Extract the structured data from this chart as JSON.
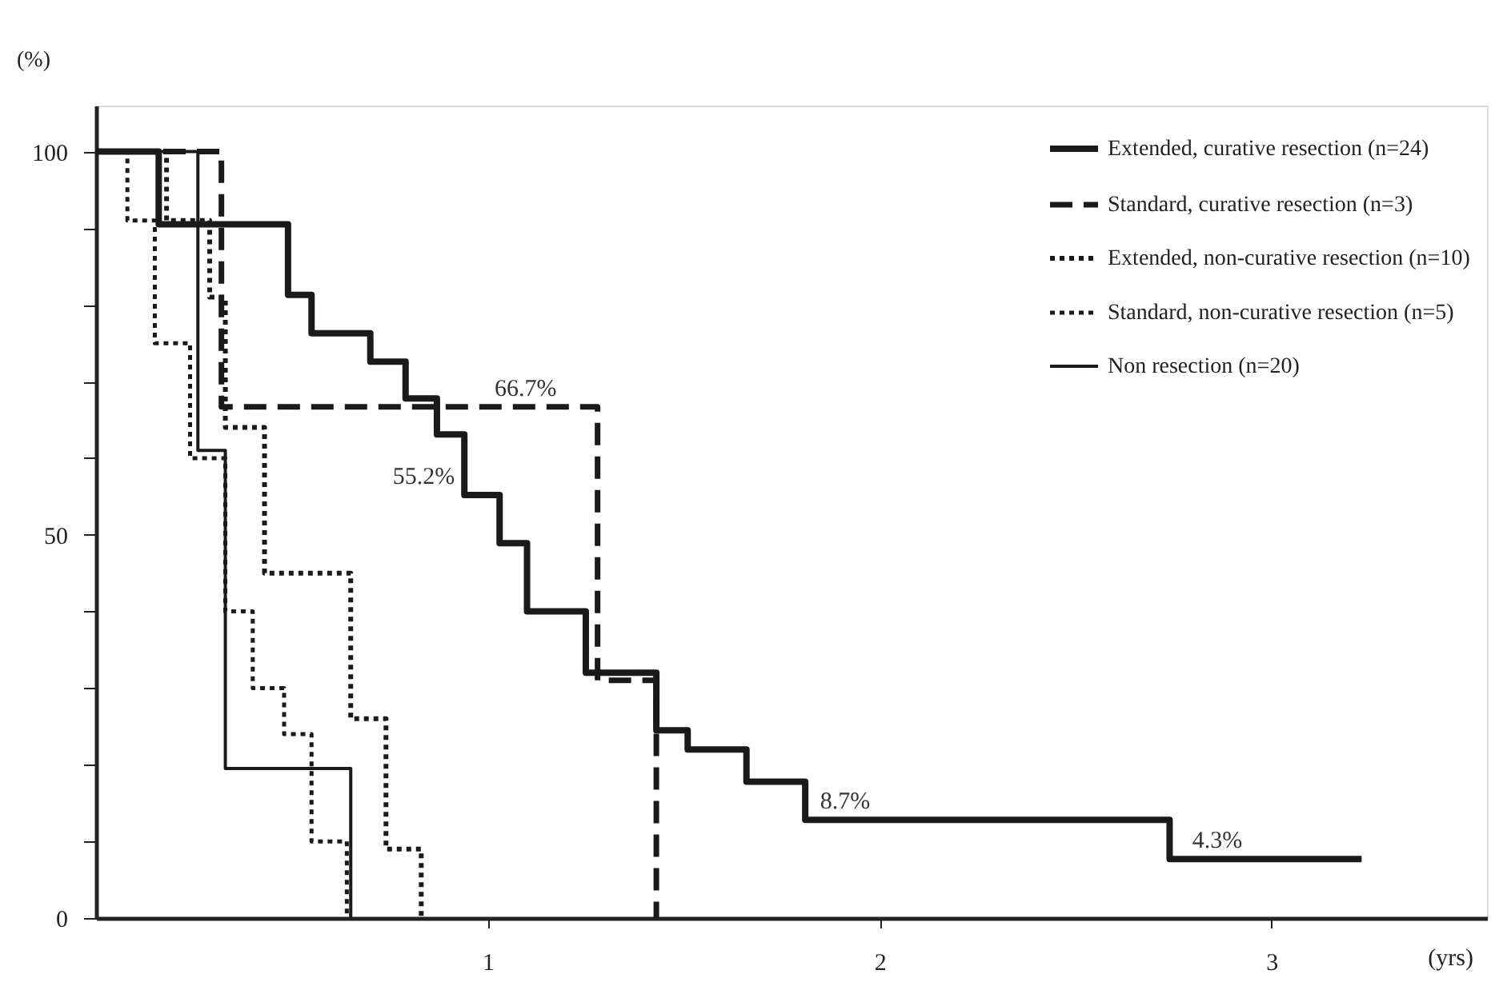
{
  "chart_data": {
    "type": "step",
    "xlabel": "(yrs)",
    "ylabel": "(%)",
    "xlim": [
      0,
      3.55
    ],
    "ylim": [
      0,
      106
    ],
    "xticks": [
      1,
      2,
      3
    ],
    "yticks": [
      0,
      {
        "value": 10,
        "label": null
      },
      {
        "value": 20,
        "label": null
      },
      {
        "value": 30,
        "label": null
      },
      {
        "value": 40,
        "label": null
      },
      50,
      {
        "value": 60,
        "label": null
      },
      {
        "value": 70,
        "label": null
      },
      {
        "value": 80,
        "label": null
      },
      {
        "value": 90,
        "label": null
      },
      100
    ],
    "grid": false,
    "legend": "top right",
    "marker": "none",
    "series": [
      {
        "name": "Extended, curative resection   (n=24)",
        "color": "#1a1a1a",
        "line_style": "solid",
        "x": [
          0,
          0.16,
          0.49,
          0.55,
          0.7,
          0.79,
          0.87,
          0.94,
          1.03,
          1.1,
          1.25,
          1.43,
          1.51,
          1.66,
          1.81,
          2.74,
          3.23
        ],
        "values": [
          100,
          90.5,
          81.3,
          76.3,
          72.6,
          67.8,
          63.1,
          55.2,
          48.9,
          40,
          32,
          24.5,
          22,
          17.8,
          12.8,
          7.7,
          7.7
        ]
      },
      {
        "name": "Standard, curative resection       (n=3)",
        "color": "#1a1a1a",
        "line_style": "dashed",
        "x": [
          0,
          0.32,
          1.28,
          1.43
        ],
        "values": [
          100,
          66.7,
          31,
          0
        ]
      },
      {
        "name": "Extended, non-curative resection (n=10)",
        "color": "#1a1a1a",
        "line_style": "dotted",
        "x": [
          0,
          0.18,
          0.29,
          0.33,
          0.43,
          0.65,
          0.74,
          0.83
        ],
        "values": [
          100,
          91,
          81,
          64,
          45,
          26,
          9,
          0
        ]
      },
      {
        "name": "Standard, non-curative resection    (n=5)",
        "color": "#1a1a1a",
        "line_style": "dotted",
        "x": [
          0,
          0.08,
          0.15,
          0.24,
          0.33,
          0.4,
          0.48,
          0.55,
          0.64
        ],
        "values": [
          100,
          91,
          75,
          60,
          40,
          30,
          24,
          10,
          0
        ]
      },
      {
        "name": "Non resection    (n=20)",
        "color": "#1a1a1a",
        "line_style": "solid",
        "x": [
          0,
          0.26,
          0.33,
          0.65
        ],
        "values": [
          100,
          61,
          19.5,
          0
        ]
      }
    ],
    "annotations": [
      {
        "text": "66.7%",
        "x": 1.2,
        "y": 66.7
      },
      {
        "text": "55.2%",
        "x": 0.94,
        "y": 55.2
      },
      {
        "text": "8.7%",
        "x": 2.0,
        "y": 12.8
      },
      {
        "text": "4.3%",
        "x": 2.95,
        "y": 7.7
      }
    ]
  }
}
